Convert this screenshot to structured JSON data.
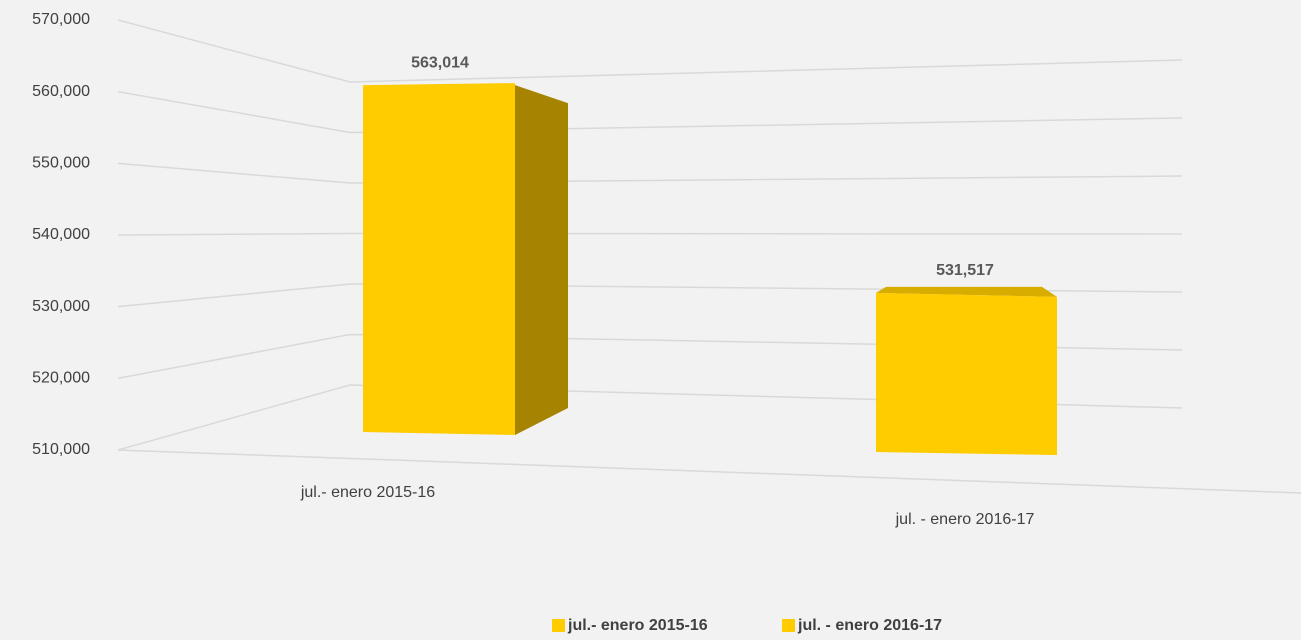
{
  "chart_data": {
    "type": "bar3d",
    "categories": [
      "jul.- enero 2015-16",
      "jul. - enero 2016-17"
    ],
    "values": [
      563014,
      531517
    ],
    "value_labels": [
      "563,014",
      "531,517"
    ],
    "colors": [
      "#ffcc00",
      "#ffcc00"
    ],
    "ylim": [
      510000,
      570000
    ],
    "yticks": [
      {
        "value": 510000,
        "label": "510,000"
      },
      {
        "value": 520000,
        "label": "520,000"
      },
      {
        "value": 530000,
        "label": "530,000"
      },
      {
        "value": 540000,
        "label": "540,000"
      },
      {
        "value": 550000,
        "label": "550,000"
      },
      {
        "value": 560000,
        "label": "560,000"
      },
      {
        "value": 570000,
        "label": "570,000"
      }
    ],
    "grid": true,
    "legend": "bottom"
  }
}
